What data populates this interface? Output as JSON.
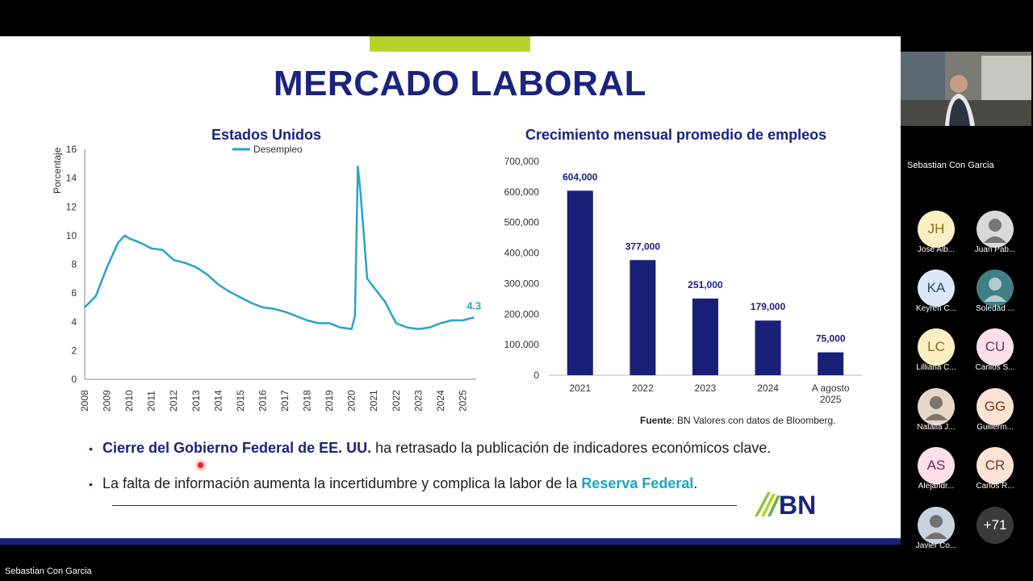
{
  "slide": {
    "title": "MERCADO LABORAL",
    "left_chart": {
      "title": "Estados Unidos",
      "legend": "Desempleo",
      "ylabel": "Porcentaje",
      "y_ticks": [
        "0",
        "2",
        "4",
        "6",
        "8",
        "10",
        "12",
        "14",
        "16"
      ],
      "x_ticks": [
        "2008",
        "2009",
        "2010",
        "2011",
        "2012",
        "2013",
        "2014",
        "2015",
        "2016",
        "2017",
        "2018",
        "2019",
        "2020",
        "2021",
        "2022",
        "2023",
        "2024",
        "2025"
      ],
      "last_value_label": "4.3",
      "line_color": "#29a3c9"
    },
    "right_chart": {
      "title": "Crecimiento mensual promedio de empleos",
      "y_ticks": [
        "0",
        "100,000",
        "200,000",
        "300,000",
        "400,000",
        "500,000",
        "600,000",
        "700,000"
      ],
      "categories": [
        "2021",
        "2022",
        "2023",
        "2024",
        "A agosto 2025"
      ],
      "value_labels": [
        "604,000",
        "377,000",
        "251,000",
        "179,000",
        "75,000"
      ],
      "bar_color": "#1a1f78",
      "source_label": "Fuente",
      "source_text": ": BN Valores con datos de Bloomberg."
    },
    "bullet1_strong": "Cierre del Gobierno Federal de EE. UU.",
    "bullet1_rest": " ha retrasado la publicación de indicadores económicos clave.",
    "bullet2_start": "La falta de información aumenta la incertidumbre y complica la labor de la ",
    "bullet2_highlight": "Reserva Federal",
    "bullet2_end": ".",
    "logo_text": "BN"
  },
  "chart_data": [
    {
      "type": "line",
      "title": "Estados Unidos",
      "ylabel": "Porcentaje",
      "ylim": [
        0,
        16
      ],
      "series": [
        {
          "name": "Desempleo",
          "x": [
            2008.0,
            2008.5,
            2009.0,
            2009.5,
            2009.8,
            2010.0,
            2010.5,
            2011.0,
            2011.5,
            2012.0,
            2012.5,
            2013.0,
            2013.5,
            2014.0,
            2014.5,
            2015.0,
            2015.5,
            2016.0,
            2016.5,
            2017.0,
            2017.5,
            2018.0,
            2018.5,
            2019.0,
            2019.5,
            2020.0,
            2020.15,
            2020.28,
            2020.4,
            2020.5,
            2020.7,
            2021.0,
            2021.5,
            2022.0,
            2022.5,
            2023.0,
            2023.5,
            2024.0,
            2024.5,
            2025.0,
            2025.5
          ],
          "values": [
            5.0,
            5.8,
            7.8,
            9.5,
            10.0,
            9.8,
            9.5,
            9.1,
            9.0,
            8.3,
            8.1,
            7.8,
            7.3,
            6.6,
            6.1,
            5.7,
            5.3,
            5.0,
            4.9,
            4.7,
            4.4,
            4.1,
            3.9,
            3.9,
            3.6,
            3.5,
            4.4,
            14.8,
            13.0,
            11.0,
            7.0,
            6.4,
            5.4,
            3.9,
            3.6,
            3.5,
            3.6,
            3.9,
            4.1,
            4.1,
            4.3
          ]
        }
      ]
    },
    {
      "type": "bar",
      "title": "Crecimiento mensual promedio de empleos",
      "categories": [
        "2021",
        "2022",
        "2023",
        "2024",
        "A agosto 2025"
      ],
      "values": [
        604000,
        377000,
        251000,
        179000,
        75000
      ],
      "ylim": [
        0,
        700000
      ]
    }
  ],
  "meeting": {
    "presenter_name": "Sebastian Con Garcia",
    "bottom_name": "Sebastian Con Garcia",
    "participants": [
      {
        "initials": "JH",
        "name": "Jose Alb...",
        "bg": "#fdefc4",
        "fg": "#8a6d10"
      },
      {
        "initials": "",
        "name": "Juan Pab...",
        "bg": "#d9d9d9",
        "fg": "#333333"
      },
      {
        "initials": "KA",
        "name": "Keyren C...",
        "bg": "#dbe8f7",
        "fg": "#2a4a7a"
      },
      {
        "initials": "",
        "name": "Soledad ...",
        "bg": "#3f7f85",
        "fg": "#ffffff"
      },
      {
        "initials": "LC",
        "name": "Lilliana C...",
        "bg": "#fdefc4",
        "fg": "#8a6d10"
      },
      {
        "initials": "CU",
        "name": "Carllos S...",
        "bg": "#fbe0ec",
        "fg": "#7a2a4a"
      },
      {
        "initials": "",
        "name": "Natalia J...",
        "bg": "#e8d7c7",
        "fg": "#333333"
      },
      {
        "initials": "GG",
        "name": "Guillerm...",
        "bg": "#fbe3d6",
        "fg": "#7a3a1a"
      },
      {
        "initials": "AS",
        "name": "Alejandr...",
        "bg": "#fbe0ec",
        "fg": "#7a2a4a"
      },
      {
        "initials": "CR",
        "name": "Carlos R...",
        "bg": "#fbe3d6",
        "fg": "#7a3a1a"
      },
      {
        "initials": "",
        "name": "Javier Co...",
        "bg": "#c9d3df",
        "fg": "#333333"
      },
      {
        "initials": "+71",
        "name": "",
        "bg": "#3a3a3a",
        "fg": "#ffffff"
      }
    ]
  }
}
